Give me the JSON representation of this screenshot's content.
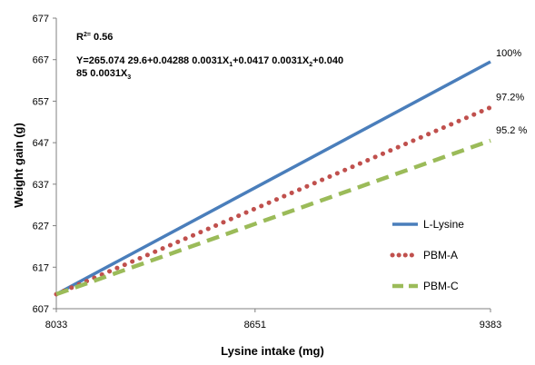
{
  "chart_data": {
    "type": "line",
    "xlabel": "Lysine intake (mg)",
    "ylabel": "Weight gain (g)",
    "xlim": [
      8033,
      9383
    ],
    "ylim": [
      607,
      677
    ],
    "x_ticks": [
      8033,
      8651,
      9383
    ],
    "y_ticks": [
      607,
      617,
      627,
      637,
      647,
      657,
      667,
      677
    ],
    "x_tick_labels": [
      "8033",
      "8651",
      "9383"
    ],
    "y_tick_labels": [
      "607",
      "617",
      "627",
      "637",
      "647",
      "657",
      "667",
      "677"
    ],
    "grid": false,
    "legend_position": "right",
    "annotations": {
      "r2_prefix": "R",
      "r2_sup": "2=",
      "r2_value": " 0.56",
      "equation_line1": "Y=265.074  29.6+0.04288  0.0031X",
      "equation_sub1": "1",
      "equation_mid1": "+0.0417  0.0031X",
      "equation_sub2": "2",
      "equation_tail1": "+0.040",
      "equation_line2": "85  0.0031X",
      "equation_sub3": "3"
    },
    "series": [
      {
        "name": "L-Lysine",
        "color": "#4a7ebb",
        "style": "solid",
        "x": [
          8033,
          9383
        ],
        "y": [
          610.5,
          666.5
        ],
        "end_label": "100%"
      },
      {
        "name": "PBM-A",
        "color": "#c0504d",
        "style": "dotted",
        "x": [
          8033,
          9383
        ],
        "y": [
          610.5,
          655.5
        ],
        "end_label": "97.2%"
      },
      {
        "name": "PBM-C",
        "color": "#9bbb59",
        "style": "dashed",
        "x": [
          8033,
          9383
        ],
        "y": [
          610.5,
          647.5
        ],
        "end_label": "95.2 %"
      }
    ]
  }
}
